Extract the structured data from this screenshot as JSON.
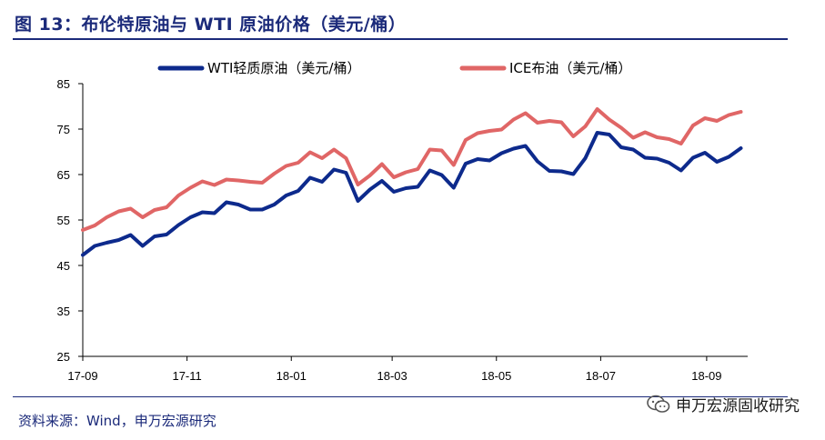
{
  "title": "图 13：布伦特原油与 WTI 原油价格（美元/桶）",
  "source": "资料来源：Wind，申万宏源研究",
  "watermark": {
    "text": "申万宏源固收研究",
    "icon": "wechat-icon"
  },
  "colors": {
    "brand": "#1b2a7a",
    "wti": "#0d2a8c",
    "ice": "#e06666"
  },
  "chart_data": {
    "type": "line",
    "xlim": [
      "2017-09-01",
      "2018-09-25"
    ],
    "ylim": [
      25,
      85
    ],
    "yticks": [
      25,
      35,
      45,
      55,
      65,
      75,
      85
    ],
    "xticks": [
      {
        "date": "2017-09-01",
        "label": "17-09"
      },
      {
        "date": "2017-11-01",
        "label": "17-11"
      },
      {
        "date": "2018-01-01",
        "label": "18-01"
      },
      {
        "date": "2018-03-01",
        "label": "18-03"
      },
      {
        "date": "2018-05-01",
        "label": "18-05"
      },
      {
        "date": "2018-07-01",
        "label": "18-07"
      },
      {
        "date": "2018-09-01",
        "label": "18-09"
      }
    ],
    "legend_position": "top",
    "grid": false,
    "series": [
      {
        "name": "WTI轻质原油（美元/桶）",
        "color": "#0d2a8c",
        "points": [
          [
            "2017-09-01",
            47.3
          ],
          [
            "2017-09-08",
            49.3
          ],
          [
            "2017-09-15",
            50.0
          ],
          [
            "2017-09-22",
            50.6
          ],
          [
            "2017-09-29",
            51.7
          ],
          [
            "2017-10-06",
            49.3
          ],
          [
            "2017-10-13",
            51.4
          ],
          [
            "2017-10-20",
            51.8
          ],
          [
            "2017-10-27",
            53.9
          ],
          [
            "2017-11-03",
            55.6
          ],
          [
            "2017-11-10",
            56.7
          ],
          [
            "2017-11-17",
            56.5
          ],
          [
            "2017-11-24",
            58.9
          ],
          [
            "2017-12-01",
            58.4
          ],
          [
            "2017-12-08",
            57.3
          ],
          [
            "2017-12-15",
            57.3
          ],
          [
            "2017-12-22",
            58.4
          ],
          [
            "2017-12-29",
            60.4
          ],
          [
            "2018-01-05",
            61.4
          ],
          [
            "2018-01-12",
            64.3
          ],
          [
            "2018-01-19",
            63.4
          ],
          [
            "2018-01-26",
            66.1
          ],
          [
            "2018-02-02",
            65.4
          ],
          [
            "2018-02-09",
            59.2
          ],
          [
            "2018-02-16",
            61.7
          ],
          [
            "2018-02-23",
            63.6
          ],
          [
            "2018-03-02",
            61.2
          ],
          [
            "2018-03-09",
            62.0
          ],
          [
            "2018-03-16",
            62.3
          ],
          [
            "2018-03-23",
            65.9
          ],
          [
            "2018-03-30",
            64.9
          ],
          [
            "2018-04-06",
            62.1
          ],
          [
            "2018-04-13",
            67.4
          ],
          [
            "2018-04-20",
            68.4
          ],
          [
            "2018-04-27",
            68.1
          ],
          [
            "2018-05-04",
            69.7
          ],
          [
            "2018-05-11",
            70.7
          ],
          [
            "2018-05-18",
            71.3
          ],
          [
            "2018-05-25",
            67.9
          ],
          [
            "2018-06-01",
            65.8
          ],
          [
            "2018-06-08",
            65.7
          ],
          [
            "2018-06-15",
            65.1
          ],
          [
            "2018-06-22",
            68.6
          ],
          [
            "2018-06-29",
            74.2
          ],
          [
            "2018-07-06",
            73.8
          ],
          [
            "2018-07-13",
            71.0
          ],
          [
            "2018-07-20",
            70.5
          ],
          [
            "2018-07-27",
            68.7
          ],
          [
            "2018-08-03",
            68.5
          ],
          [
            "2018-08-10",
            67.6
          ],
          [
            "2018-08-17",
            65.9
          ],
          [
            "2018-08-24",
            68.7
          ],
          [
            "2018-08-31",
            69.8
          ],
          [
            "2018-09-07",
            67.8
          ],
          [
            "2018-09-14",
            68.9
          ],
          [
            "2018-09-21",
            70.8
          ]
        ]
      },
      {
        "name": "ICE布油（美元/桶）",
        "color": "#e06666",
        "points": [
          [
            "2017-09-01",
            52.8
          ],
          [
            "2017-09-08",
            53.8
          ],
          [
            "2017-09-15",
            55.6
          ],
          [
            "2017-09-22",
            56.9
          ],
          [
            "2017-09-29",
            57.5
          ],
          [
            "2017-10-06",
            55.6
          ],
          [
            "2017-10-13",
            57.2
          ],
          [
            "2017-10-20",
            57.8
          ],
          [
            "2017-10-27",
            60.4
          ],
          [
            "2017-11-03",
            62.1
          ],
          [
            "2017-11-10",
            63.5
          ],
          [
            "2017-11-17",
            62.7
          ],
          [
            "2017-11-24",
            63.9
          ],
          [
            "2017-12-01",
            63.7
          ],
          [
            "2017-12-08",
            63.4
          ],
          [
            "2017-12-15",
            63.2
          ],
          [
            "2017-12-22",
            65.2
          ],
          [
            "2017-12-29",
            66.9
          ],
          [
            "2018-01-05",
            67.6
          ],
          [
            "2018-01-12",
            69.9
          ],
          [
            "2018-01-19",
            68.6
          ],
          [
            "2018-01-26",
            70.5
          ],
          [
            "2018-02-02",
            68.6
          ],
          [
            "2018-02-09",
            62.8
          ],
          [
            "2018-02-16",
            64.8
          ],
          [
            "2018-02-23",
            67.3
          ],
          [
            "2018-03-02",
            64.4
          ],
          [
            "2018-03-09",
            65.5
          ],
          [
            "2018-03-16",
            66.2
          ],
          [
            "2018-03-23",
            70.5
          ],
          [
            "2018-03-30",
            70.3
          ],
          [
            "2018-04-06",
            67.1
          ],
          [
            "2018-04-13",
            72.6
          ],
          [
            "2018-04-20",
            74.1
          ],
          [
            "2018-04-27",
            74.6
          ],
          [
            "2018-05-04",
            74.9
          ],
          [
            "2018-05-11",
            77.1
          ],
          [
            "2018-05-18",
            78.5
          ],
          [
            "2018-05-25",
            76.4
          ],
          [
            "2018-06-01",
            76.8
          ],
          [
            "2018-06-08",
            76.5
          ],
          [
            "2018-06-15",
            73.4
          ],
          [
            "2018-06-22",
            75.6
          ],
          [
            "2018-06-29",
            79.4
          ],
          [
            "2018-07-06",
            77.1
          ],
          [
            "2018-07-13",
            75.3
          ],
          [
            "2018-07-20",
            73.1
          ],
          [
            "2018-07-27",
            74.3
          ],
          [
            "2018-08-03",
            73.2
          ],
          [
            "2018-08-10",
            72.8
          ],
          [
            "2018-08-17",
            71.8
          ],
          [
            "2018-08-24",
            75.8
          ],
          [
            "2018-08-31",
            77.4
          ],
          [
            "2018-09-07",
            76.8
          ],
          [
            "2018-09-14",
            78.1
          ],
          [
            "2018-09-21",
            78.8
          ]
        ]
      }
    ]
  }
}
